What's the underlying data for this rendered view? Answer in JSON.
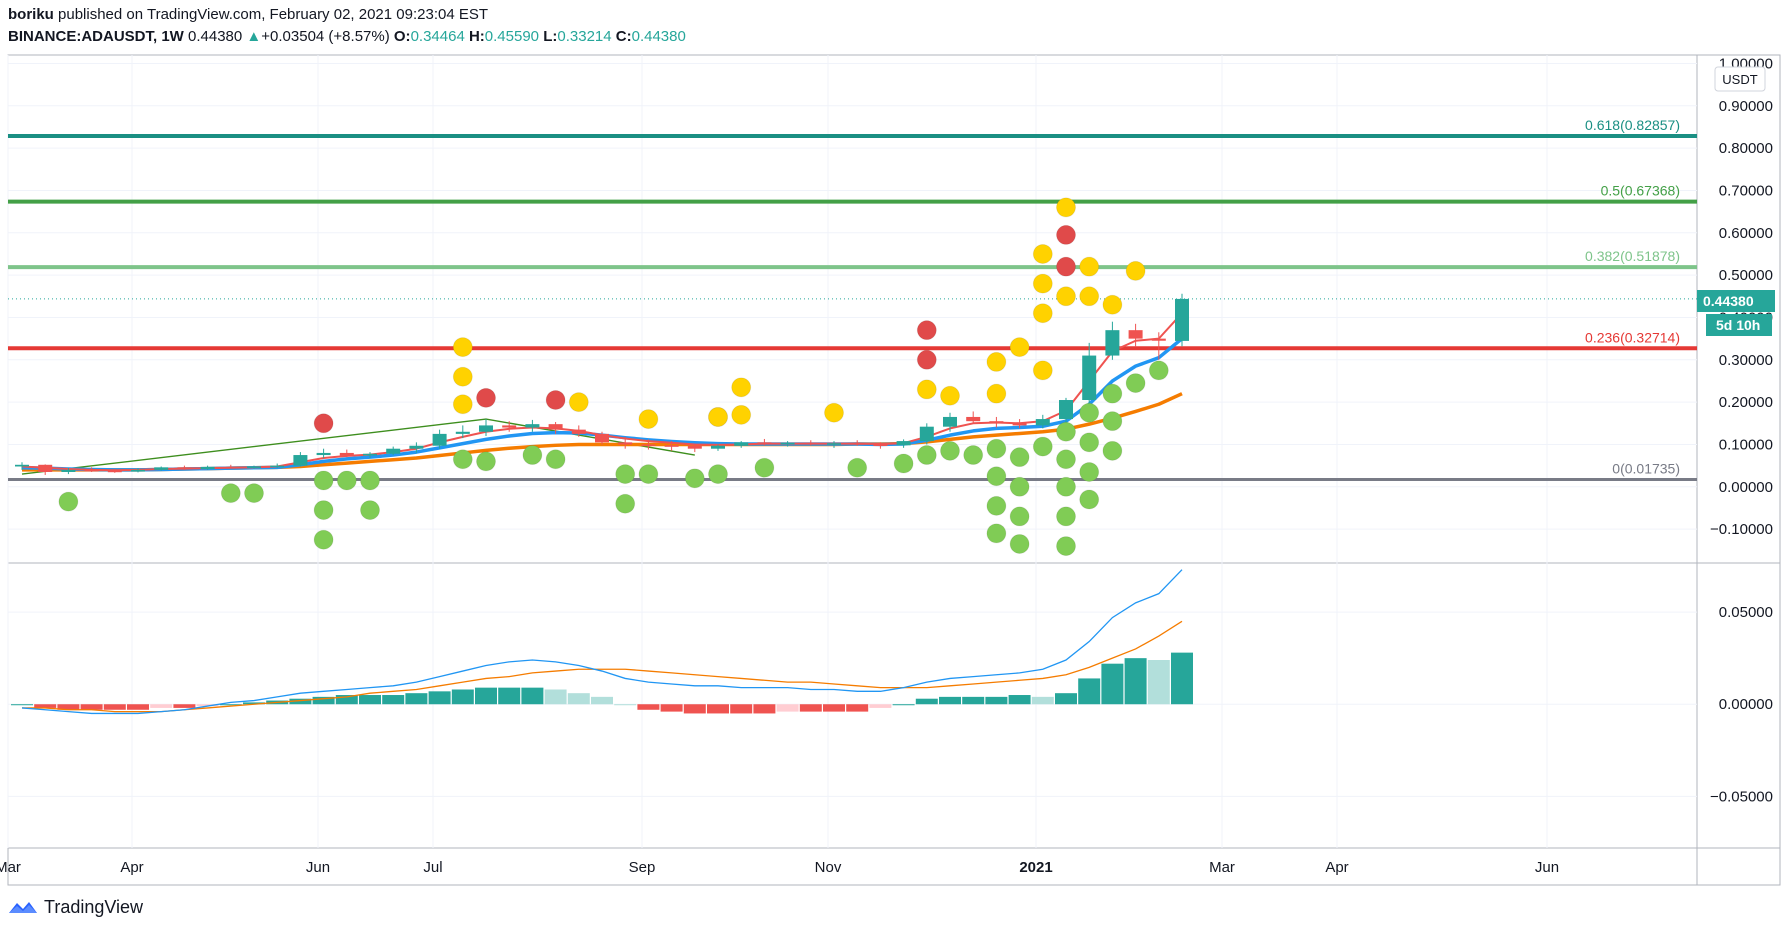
{
  "header": {
    "author": "boriku",
    "published_text": "published on TradingView.com, February 02, 2021 09:23:04 EST",
    "symbol": "BINANCE:ADAUSDT",
    "interval": "1W",
    "last": "0.44380",
    "change_arrow": "▲",
    "change": "+0.03504 (+8.57%)",
    "o_label": "O:",
    "o_value": "0.34464",
    "h_label": "H:",
    "h_value": "0.45590",
    "l_label": "L:",
    "l_value": "0.33214",
    "c_label": "C:",
    "c_value": "0.44380"
  },
  "currency_badge": "USDT",
  "price_badge": {
    "value": "0.44380",
    "countdown": "5d 10h"
  },
  "footer": {
    "brand": "TradingView"
  },
  "colors": {
    "teal": "#26a69a",
    "red": "#ef5350",
    "blue": "#2196f3",
    "orange": "#f57c00",
    "green_dot": "#80cc55",
    "yellow_dot": "#ffd200",
    "red_dot": "#e04a4a",
    "fib_0618": "#1a8f83",
    "fib_05": "#43a047",
    "fib_0382": "#7ec48a",
    "fib_0236": "#e53935",
    "fib_0": "#787b86"
  },
  "chart_data": [
    {
      "type": "candlestick",
      "series": "ADAUSDT 1W",
      "yaxis_ticks": [
        "1.00000",
        "0.90000",
        "0.80000",
        "0.70000",
        "0.60000",
        "0.50000",
        "0.40000",
        "0.30000",
        "0.20000",
        "0.10000",
        "0.00000",
        "−0.10000"
      ],
      "y_values": [
        1.0,
        0.9,
        0.8,
        0.7,
        0.6,
        0.5,
        0.4,
        0.3,
        0.2,
        0.1,
        0.0,
        -0.1
      ],
      "ylim": [
        -0.18,
        1.02
      ],
      "xaxis_ticks": [
        "Mar",
        "Apr",
        "Jun",
        "Jul",
        "Sep",
        "Nov",
        "2021",
        "Mar",
        "Apr",
        "Jun"
      ],
      "fib_levels": [
        {
          "label": "0.618(0.82857)",
          "value": 0.82857,
          "color": "#1a8f83"
        },
        {
          "label": "0.5(0.67368)",
          "value": 0.67368,
          "color": "#43a047"
        },
        {
          "label": "0.382(0.51878)",
          "value": 0.51878,
          "color": "#7ec48a"
        },
        {
          "label": "0.236(0.32714)",
          "value": 0.32714,
          "color": "#e53935"
        },
        {
          "label": "0(0.01735)",
          "value": 0.01735,
          "color": "#787b86"
        }
      ],
      "candles": [
        [
          0.048,
          0.058,
          0.04,
          0.052
        ],
        [
          0.052,
          0.053,
          0.028,
          0.035
        ],
        [
          0.035,
          0.045,
          0.03,
          0.04
        ],
        [
          0.04,
          0.046,
          0.035,
          0.038
        ],
        [
          0.038,
          0.042,
          0.033,
          0.036
        ],
        [
          0.036,
          0.044,
          0.034,
          0.04
        ],
        [
          0.04,
          0.048,
          0.038,
          0.046
        ],
        [
          0.046,
          0.05,
          0.04,
          0.042
        ],
        [
          0.042,
          0.05,
          0.04,
          0.047
        ],
        [
          0.047,
          0.052,
          0.044,
          0.046
        ],
        [
          0.046,
          0.05,
          0.043,
          0.048
        ],
        [
          0.048,
          0.055,
          0.045,
          0.05
        ],
        [
          0.05,
          0.082,
          0.048,
          0.075
        ],
        [
          0.075,
          0.09,
          0.068,
          0.08
        ],
        [
          0.08,
          0.088,
          0.07,
          0.074
        ],
        [
          0.074,
          0.082,
          0.068,
          0.078
        ],
        [
          0.078,
          0.095,
          0.075,
          0.09
        ],
        [
          0.09,
          0.105,
          0.08,
          0.097
        ],
        [
          0.097,
          0.135,
          0.09,
          0.125
        ],
        [
          0.125,
          0.145,
          0.115,
          0.13
        ],
        [
          0.13,
          0.16,
          0.12,
          0.145
        ],
        [
          0.145,
          0.155,
          0.13,
          0.14
        ],
        [
          0.14,
          0.158,
          0.13,
          0.148
        ],
        [
          0.148,
          0.153,
          0.125,
          0.135
        ],
        [
          0.135,
          0.145,
          0.118,
          0.125
        ],
        [
          0.125,
          0.13,
          0.1,
          0.105
        ],
        [
          0.105,
          0.118,
          0.09,
          0.1
        ],
        [
          0.1,
          0.112,
          0.088,
          0.098
        ],
        [
          0.098,
          0.108,
          0.085,
          0.097
        ],
        [
          0.097,
          0.102,
          0.082,
          0.09
        ],
        [
          0.09,
          0.1,
          0.085,
          0.097
        ],
        [
          0.097,
          0.108,
          0.092,
          0.105
        ],
        [
          0.105,
          0.113,
          0.098,
          0.102
        ],
        [
          0.102,
          0.108,
          0.095,
          0.104
        ],
        [
          0.104,
          0.11,
          0.098,
          0.1
        ],
        [
          0.1,
          0.108,
          0.092,
          0.103
        ],
        [
          0.103,
          0.11,
          0.097,
          0.1
        ],
        [
          0.1,
          0.105,
          0.09,
          0.098
        ],
        [
          0.098,
          0.112,
          0.092,
          0.108
        ],
        [
          0.108,
          0.15,
          0.1,
          0.142
        ],
        [
          0.142,
          0.175,
          0.13,
          0.165
        ],
        [
          0.165,
          0.178,
          0.15,
          0.155
        ],
        [
          0.155,
          0.165,
          0.14,
          0.15
        ],
        [
          0.15,
          0.16,
          0.138,
          0.145
        ],
        [
          0.145,
          0.17,
          0.138,
          0.16
        ],
        [
          0.16,
          0.21,
          0.15,
          0.205
        ],
        [
          0.205,
          0.34,
          0.19,
          0.31
        ],
        [
          0.31,
          0.39,
          0.3,
          0.37
        ],
        [
          0.37,
          0.385,
          0.33,
          0.35
        ],
        [
          0.35,
          0.365,
          0.3,
          0.345
        ],
        [
          0.34464,
          0.4559,
          0.33214,
          0.4438
        ]
      ],
      "ma_fast": [
        0.048,
        0.045,
        0.042,
        0.04,
        0.039,
        0.04,
        0.042,
        0.043,
        0.044,
        0.045,
        0.046,
        0.048,
        0.058,
        0.068,
        0.073,
        0.076,
        0.082,
        0.09,
        0.105,
        0.118,
        0.13,
        0.137,
        0.14,
        0.138,
        0.132,
        0.122,
        0.114,
        0.108,
        0.104,
        0.1,
        0.099,
        0.1,
        0.102,
        0.102,
        0.102,
        0.102,
        0.102,
        0.101,
        0.103,
        0.118,
        0.138,
        0.15,
        0.152,
        0.15,
        0.155,
        0.18,
        0.25,
        0.32,
        0.345,
        0.35,
        0.41
      ],
      "ma_mid": [
        0.045,
        0.044,
        0.042,
        0.041,
        0.04,
        0.04,
        0.041,
        0.042,
        0.043,
        0.044,
        0.045,
        0.046,
        0.052,
        0.06,
        0.066,
        0.07,
        0.075,
        0.082,
        0.092,
        0.102,
        0.112,
        0.12,
        0.126,
        0.128,
        0.127,
        0.122,
        0.116,
        0.111,
        0.107,
        0.104,
        0.102,
        0.101,
        0.101,
        0.101,
        0.101,
        0.101,
        0.101,
        0.1,
        0.101,
        0.11,
        0.122,
        0.132,
        0.138,
        0.14,
        0.143,
        0.155,
        0.195,
        0.25,
        0.285,
        0.305,
        0.35
      ],
      "ma_slow": [
        0.04,
        0.04,
        0.04,
        0.04,
        0.04,
        0.04,
        0.041,
        0.042,
        0.043,
        0.044,
        0.045,
        0.046,
        0.048,
        0.052,
        0.056,
        0.06,
        0.064,
        0.068,
        0.074,
        0.08,
        0.086,
        0.091,
        0.095,
        0.098,
        0.1,
        0.1,
        0.1,
        0.1,
        0.1,
        0.1,
        0.1,
        0.1,
        0.1,
        0.1,
        0.1,
        0.1,
        0.101,
        0.101,
        0.102,
        0.106,
        0.112,
        0.118,
        0.122,
        0.126,
        0.13,
        0.136,
        0.148,
        0.162,
        0.178,
        0.195,
        0.22
      ],
      "trendline": [
        [
          0,
          0.03
        ],
        [
          20,
          0.16
        ],
        [
          29,
          0.075
        ]
      ],
      "dots_green": [
        [
          2,
          -0.035
        ],
        [
          9,
          -0.015
        ],
        [
          10,
          -0.015
        ],
        [
          13,
          0.015
        ],
        [
          13,
          -0.055
        ],
        [
          13,
          -0.125
        ],
        [
          14,
          0.015
        ],
        [
          15,
          0.015
        ],
        [
          15,
          -0.055
        ],
        [
          19,
          0.065
        ],
        [
          20,
          0.06
        ],
        [
          22,
          0.075
        ],
        [
          23,
          0.065
        ],
        [
          26,
          0.03
        ],
        [
          26,
          -0.04
        ],
        [
          27,
          0.03
        ],
        [
          29,
          0.02
        ],
        [
          30,
          0.03
        ],
        [
          32,
          0.045
        ],
        [
          36,
          0.045
        ],
        [
          38,
          0.055
        ],
        [
          39,
          0.075
        ],
        [
          40,
          0.085
        ],
        [
          41,
          0.075
        ],
        [
          42,
          0.09
        ],
        [
          42,
          0.025
        ],
        [
          42,
          -0.045
        ],
        [
          42,
          -0.11
        ],
        [
          43,
          0.07
        ],
        [
          43,
          0.0
        ],
        [
          43,
          -0.07
        ],
        [
          43,
          -0.135
        ],
        [
          44,
          0.095
        ],
        [
          45,
          0.13
        ],
        [
          45,
          0.065
        ],
        [
          45,
          0.0
        ],
        [
          45,
          -0.07
        ],
        [
          45,
          -0.14
        ],
        [
          46,
          0.175
        ],
        [
          46,
          0.105
        ],
        [
          46,
          0.035
        ],
        [
          46,
          -0.03
        ],
        [
          47,
          0.22
        ],
        [
          47,
          0.155
        ],
        [
          47,
          0.085
        ],
        [
          48,
          0.245
        ],
        [
          49,
          0.275
        ]
      ],
      "dots_yellow": [
        [
          19,
          0.33
        ],
        [
          19,
          0.26
        ],
        [
          19,
          0.195
        ],
        [
          24,
          0.2
        ],
        [
          27,
          0.16
        ],
        [
          30,
          0.165
        ],
        [
          30,
          0.165
        ],
        [
          31,
          0.235
        ],
        [
          31,
          0.17
        ],
        [
          35,
          0.175
        ],
        [
          39,
          0.23
        ],
        [
          40,
          0.215
        ],
        [
          42,
          0.295
        ],
        [
          42,
          0.22
        ],
        [
          43,
          0.33
        ],
        [
          44,
          0.275
        ],
        [
          44,
          0.55
        ],
        [
          44,
          0.48
        ],
        [
          44,
          0.41
        ],
        [
          45,
          0.66
        ],
        [
          45,
          0.45
        ],
        [
          46,
          0.52
        ],
        [
          46,
          0.45
        ],
        [
          47,
          0.43
        ],
        [
          48,
          0.51
        ]
      ],
      "dots_red": [
        [
          13,
          0.15
        ],
        [
          20,
          0.21
        ],
        [
          23,
          0.205
        ],
        [
          39,
          0.37
        ],
        [
          39,
          0.3
        ],
        [
          45,
          0.595
        ],
        [
          45,
          0.52
        ]
      ]
    },
    {
      "type": "macd",
      "yaxis_ticks": [
        "0.05000",
        "0.00000",
        "−0.05000"
      ],
      "y_values": [
        0.05,
        0.0,
        -0.05
      ],
      "ylim": [
        -0.078,
        0.075
      ],
      "histogram": [
        0.0,
        -0.002,
        -0.003,
        -0.003,
        -0.003,
        -0.003,
        -0.002,
        -0.002,
        -0.001,
        0.0,
        0.001,
        0.002,
        0.003,
        0.004,
        0.005,
        0.005,
        0.005,
        0.006,
        0.007,
        0.008,
        0.009,
        0.009,
        0.009,
        0.008,
        0.006,
        0.004,
        0.0,
        -0.003,
        -0.004,
        -0.005,
        -0.005,
        -0.005,
        -0.005,
        -0.004,
        -0.004,
        -0.004,
        -0.004,
        -0.002,
        0.0,
        0.003,
        0.004,
        0.004,
        0.004,
        0.005,
        0.004,
        0.006,
        0.014,
        0.022,
        0.025,
        0.024,
        0.028
      ],
      "macd": [
        -0.002,
        -0.003,
        -0.004,
        -0.005,
        -0.005,
        -0.005,
        -0.004,
        -0.003,
        -0.001,
        0.001,
        0.002,
        0.004,
        0.006,
        0.007,
        0.008,
        0.009,
        0.01,
        0.012,
        0.015,
        0.018,
        0.021,
        0.023,
        0.024,
        0.023,
        0.021,
        0.018,
        0.014,
        0.012,
        0.011,
        0.01,
        0.01,
        0.009,
        0.009,
        0.009,
        0.008,
        0.008,
        0.007,
        0.007,
        0.009,
        0.012,
        0.014,
        0.015,
        0.016,
        0.017,
        0.019,
        0.024,
        0.034,
        0.047,
        0.055,
        0.06,
        0.073
      ],
      "signal": [
        -0.002,
        -0.002,
        -0.003,
        -0.003,
        -0.004,
        -0.004,
        -0.004,
        -0.003,
        -0.002,
        -0.001,
        0.0,
        0.001,
        0.002,
        0.003,
        0.004,
        0.006,
        0.007,
        0.008,
        0.01,
        0.012,
        0.014,
        0.015,
        0.017,
        0.018,
        0.019,
        0.019,
        0.019,
        0.018,
        0.017,
        0.016,
        0.015,
        0.014,
        0.013,
        0.012,
        0.012,
        0.011,
        0.01,
        0.009,
        0.009,
        0.009,
        0.01,
        0.011,
        0.012,
        0.013,
        0.014,
        0.016,
        0.02,
        0.025,
        0.03,
        0.037,
        0.045
      ]
    }
  ]
}
